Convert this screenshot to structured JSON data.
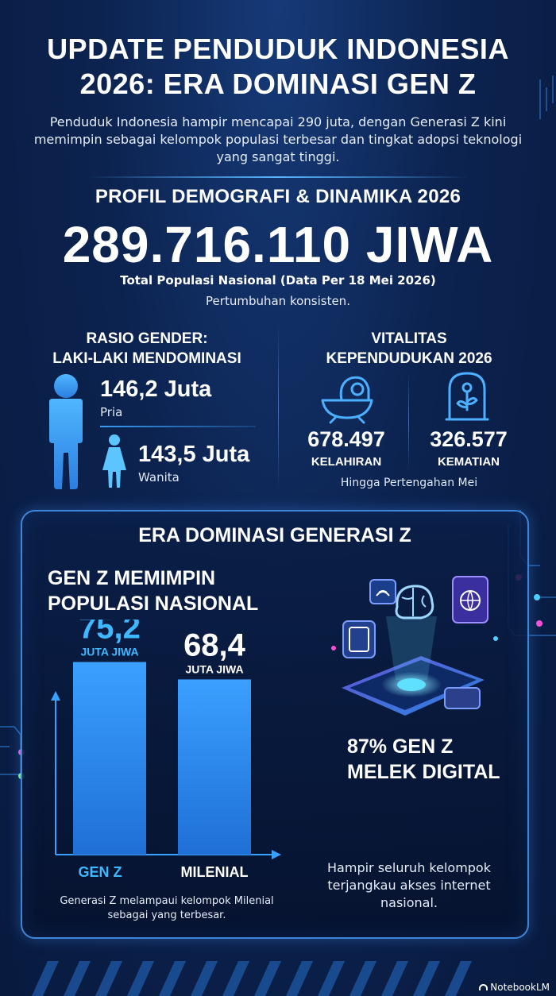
{
  "header": {
    "title_line1": "UPDATE PENDUDUK INDONESIA",
    "title_line2": "2026: ERA DOMINASI GEN Z",
    "subtitle": "Penduduk Indonesia hampir mencapai 290 juta, dengan Generasi Z kini memimpin sebagai kelompok populasi terbesar dan tingkat adopsi teknologi yang sangat tinggi."
  },
  "profile": {
    "heading": "PROFIL DEMOGRAFI & DINAMIKA 2026",
    "total": "289.716.110 JIWA",
    "total_note": "Total Populasi Nasional (Data Per 18 Mei 2026)",
    "growth_note": "Pertumbuhan konsisten."
  },
  "gender": {
    "heading_line1": "RASIO GENDER:",
    "heading_line2": "LAKI-LAKI MENDOMINASI",
    "male_value": "146,2 Juta",
    "male_label": "Pria",
    "female_value": "143,5 Juta",
    "female_label": "Wanita"
  },
  "vitality": {
    "heading_line1": "VITALITAS",
    "heading_line2": "KEPENDUDUKAN 2026",
    "births_value": "678.497",
    "births_label": "KELAHIRAN",
    "deaths_value": "326.577",
    "deaths_label": "KEMATIAN",
    "period_note": "Hingga Pertengahan Mei"
  },
  "genz_panel": {
    "title": "ERA DOMINASI GENERASI Z",
    "chart_heading_line1": "GEN Z MEMIMPIN",
    "chart_heading_line2": "POPULASI NASIONAL",
    "chart_caption": "Generasi Z melampaui kelompok Milenial sebagai yang terbesar.",
    "digital_line1": "87% GEN Z",
    "digital_line2": "MELEK DIGITAL",
    "digital_note": "Hampir seluruh kelompok terjangkau akses internet nasional."
  },
  "chart_data": {
    "type": "bar",
    "categories": [
      "GEN Z",
      "MILENIAL"
    ],
    "values": [
      75.2,
      68.4
    ],
    "value_labels": [
      "75,2",
      "68,4"
    ],
    "unit_label": "JUTA JIWA",
    "bar_colors": [
      "#2f8ef0",
      "#2f8ef0"
    ],
    "value_colors": [
      "#3fb8ff",
      "#ffffff"
    ],
    "ylim": [
      0,
      80
    ],
    "grid": false
  },
  "footer": {
    "brand": "NotebookLM"
  },
  "colors": {
    "accent": "#3fb8ff",
    "panel_border": "#3f86d8",
    "male_icon": "#3c9cf2",
    "female_icon": "#5cc4ff"
  },
  "icons": [
    "male-person-icon",
    "female-person-icon",
    "baby-bassinet-icon",
    "memorial-flower-icon",
    "phone-brain-illustration-icon",
    "notebooklm-logo-icon"
  ]
}
